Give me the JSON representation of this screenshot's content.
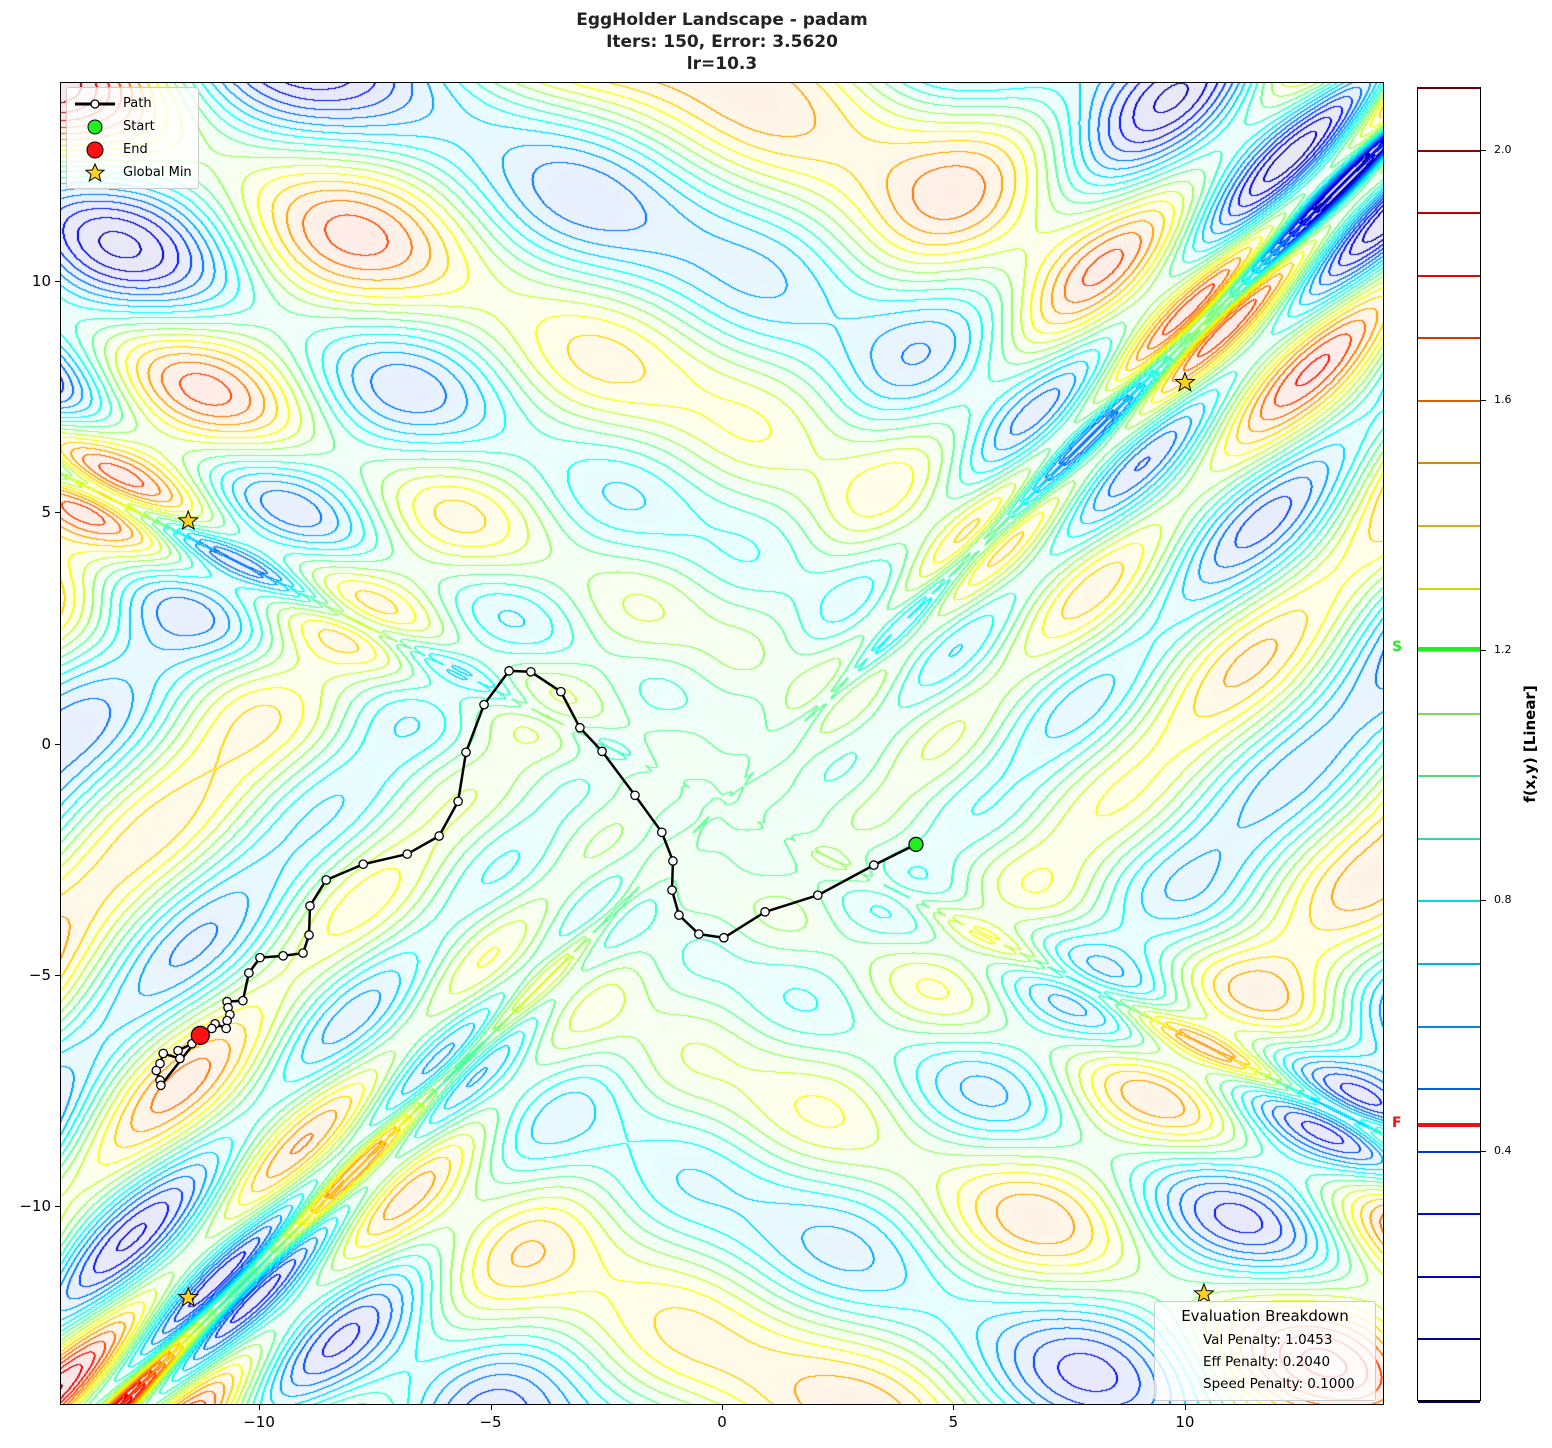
{
  "chart_data": {
    "type": "contour",
    "title_lines": [
      "EggHolder Landscape - padam",
      "Iters: 150, Error: 3.5620",
      "lr=10.3"
    ],
    "xlim": [
      -14.3,
      14.3
    ],
    "ylim": [
      -14.3,
      14.3
    ],
    "xticks": [
      -10,
      -5,
      0,
      5,
      10
    ],
    "yticks": [
      -10,
      -5,
      0,
      5,
      10
    ],
    "xtick_labels": [
      "−10",
      "−5",
      "0",
      "5",
      "10"
    ],
    "ytick_labels": [
      "−10",
      "−5",
      "0",
      "5",
      "10"
    ],
    "grid": false,
    "colormap": "jet",
    "contour_levels": {
      "min": 0.0,
      "max": 2.1,
      "step": 0.1
    },
    "colorbar": {
      "label": "f(x,y) [Linear]",
      "ticks": [
        0.4,
        0.8,
        1.2,
        1.6,
        2.0
      ],
      "tick_labels": [
        "0.4",
        "0.8",
        "1.2",
        "1.6",
        "2.0"
      ],
      "range": [
        0.0,
        2.1
      ],
      "markers": [
        {
          "label": "S",
          "value": 1.203,
          "color": "#22ee22"
        },
        {
          "label": "F",
          "value": 0.443,
          "color": "#ee1111"
        }
      ]
    },
    "path": {
      "name": "Path",
      "points": [
        [
          4.19,
          -2.18
        ],
        [
          3.28,
          -2.63
        ],
        [
          2.07,
          -3.28
        ],
        [
          0.93,
          -3.64
        ],
        [
          0.04,
          -4.2
        ],
        [
          -0.5,
          -4.12
        ],
        [
          -0.93,
          -3.71
        ],
        [
          -1.08,
          -3.17
        ],
        [
          -1.06,
          -2.54
        ],
        [
          -1.3,
          -1.92
        ],
        [
          -1.88,
          -1.12
        ],
        [
          -2.59,
          -0.17
        ],
        [
          -3.07,
          0.34
        ],
        [
          -3.48,
          1.12
        ],
        [
          -4.13,
          1.55
        ],
        [
          -4.6,
          1.57
        ],
        [
          -5.14,
          0.84
        ],
        [
          -5.53,
          -0.19
        ],
        [
          -5.7,
          -1.25
        ],
        [
          -6.11,
          -2.0
        ],
        [
          -6.8,
          -2.39
        ],
        [
          -7.75,
          -2.61
        ],
        [
          -8.55,
          -2.95
        ],
        [
          -8.9,
          -3.51
        ],
        [
          -8.92,
          -4.14
        ],
        [
          -9.05,
          -4.53
        ],
        [
          -9.48,
          -4.59
        ],
        [
          -9.98,
          -4.63
        ],
        [
          -10.22,
          -4.96
        ],
        [
          -10.35,
          -5.56
        ],
        [
          -10.69,
          -5.58
        ],
        [
          -10.67,
          -5.71
        ],
        [
          -10.63,
          -5.86
        ],
        [
          -10.69,
          -5.99
        ],
        [
          -10.71,
          -6.16
        ],
        [
          -10.95,
          -6.06
        ],
        [
          -11.02,
          -6.16
        ],
        [
          -11.17,
          -6.27
        ],
        [
          -11.45,
          -6.49
        ],
        [
          -11.75,
          -6.64
        ],
        [
          -11.71,
          -6.81
        ],
        [
          -12.07,
          -6.7
        ],
        [
          -12.14,
          -6.92
        ],
        [
          -12.22,
          -7.07
        ],
        [
          -12.14,
          -7.28
        ],
        [
          -12.12,
          -7.39
        ],
        [
          -11.27,
          -6.31
        ]
      ]
    },
    "start": {
      "name": "Start",
      "point": [
        4.19,
        -2.18
      ],
      "color": "#22ee22"
    },
    "end": {
      "name": "End",
      "point": [
        -11.27,
        -6.31
      ],
      "color": "#ff1111"
    },
    "global_min": {
      "name": "Global Min",
      "points": [
        [
          -11.53,
          4.81
        ],
        [
          10.0,
          7.8
        ],
        [
          -11.53,
          -11.98
        ],
        [
          10.41,
          -11.9
        ]
      ],
      "color": "#ffd21f"
    },
    "legend_placement": "top-left"
  },
  "evaluation": {
    "heading": "Evaluation Breakdown",
    "val_penalty": "Val Penalty: 1.0453",
    "eff_penalty": "Eff Penalty: 0.2040",
    "speed_penalty": "Speed Penalty: 0.1000"
  }
}
